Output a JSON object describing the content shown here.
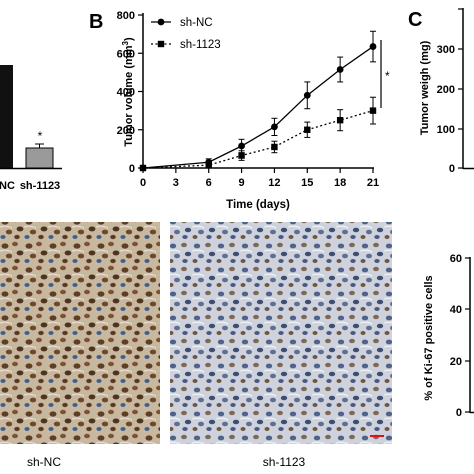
{
  "panels": {
    "B": "B",
    "C": "C"
  },
  "panel_a_partial": {
    "categories": [
      "sh-NC",
      "sh-1123"
    ],
    "category_prefix_visible": [
      "NC",
      "sh-1123"
    ],
    "significance": "*",
    "colors": {
      "sh-NC": "#111111",
      "sh-1123": "#9a9a9a"
    }
  },
  "panel_c_partial": {
    "ylabel": "Tumor weigh (mg)",
    "ticks": [
      "300",
      "200",
      "100",
      "0"
    ]
  },
  "ki67": {
    "image_labels": [
      "sh-NC",
      "sh-1123"
    ],
    "ylabel": "% of Ki-67 positive cells",
    "ticks": [
      "60",
      "40",
      "20",
      "0"
    ]
  },
  "chart_data": {
    "type": "line",
    "title": "",
    "xlabel": "Time (days)",
    "ylabel": "Tumor volume (mm³)",
    "ylabel_main": "Tumor volume (mm",
    "ylabel_sup": "3",
    "ylabel_end": ")",
    "x": [
      0,
      3,
      6,
      9,
      12,
      15,
      18,
      21
    ],
    "xticks": [
      "0",
      "3",
      "6",
      "9",
      "12",
      "15",
      "18",
      "21"
    ],
    "yticks": [
      "0",
      "200",
      "400",
      "600",
      "800"
    ],
    "ylim": [
      0,
      800
    ],
    "xlim": [
      0,
      21
    ],
    "legend_position": "top-left",
    "significance": "*",
    "series": [
      {
        "name": "sh-NC",
        "marker": "circle",
        "line": "solid",
        "x": [
          0,
          6,
          9,
          12,
          15,
          18,
          21
        ],
        "values": [
          0,
          30,
          115,
          215,
          380,
          515,
          635
        ],
        "errors": [
          0,
          18,
          35,
          45,
          70,
          65,
          80
        ]
      },
      {
        "name": "sh-1123",
        "marker": "square",
        "line": "dotted",
        "x": [
          0,
          6,
          9,
          12,
          15,
          18,
          21
        ],
        "values": [
          0,
          15,
          65,
          110,
          200,
          250,
          300
        ],
        "errors": [
          0,
          12,
          25,
          30,
          40,
          55,
          70
        ]
      }
    ]
  }
}
